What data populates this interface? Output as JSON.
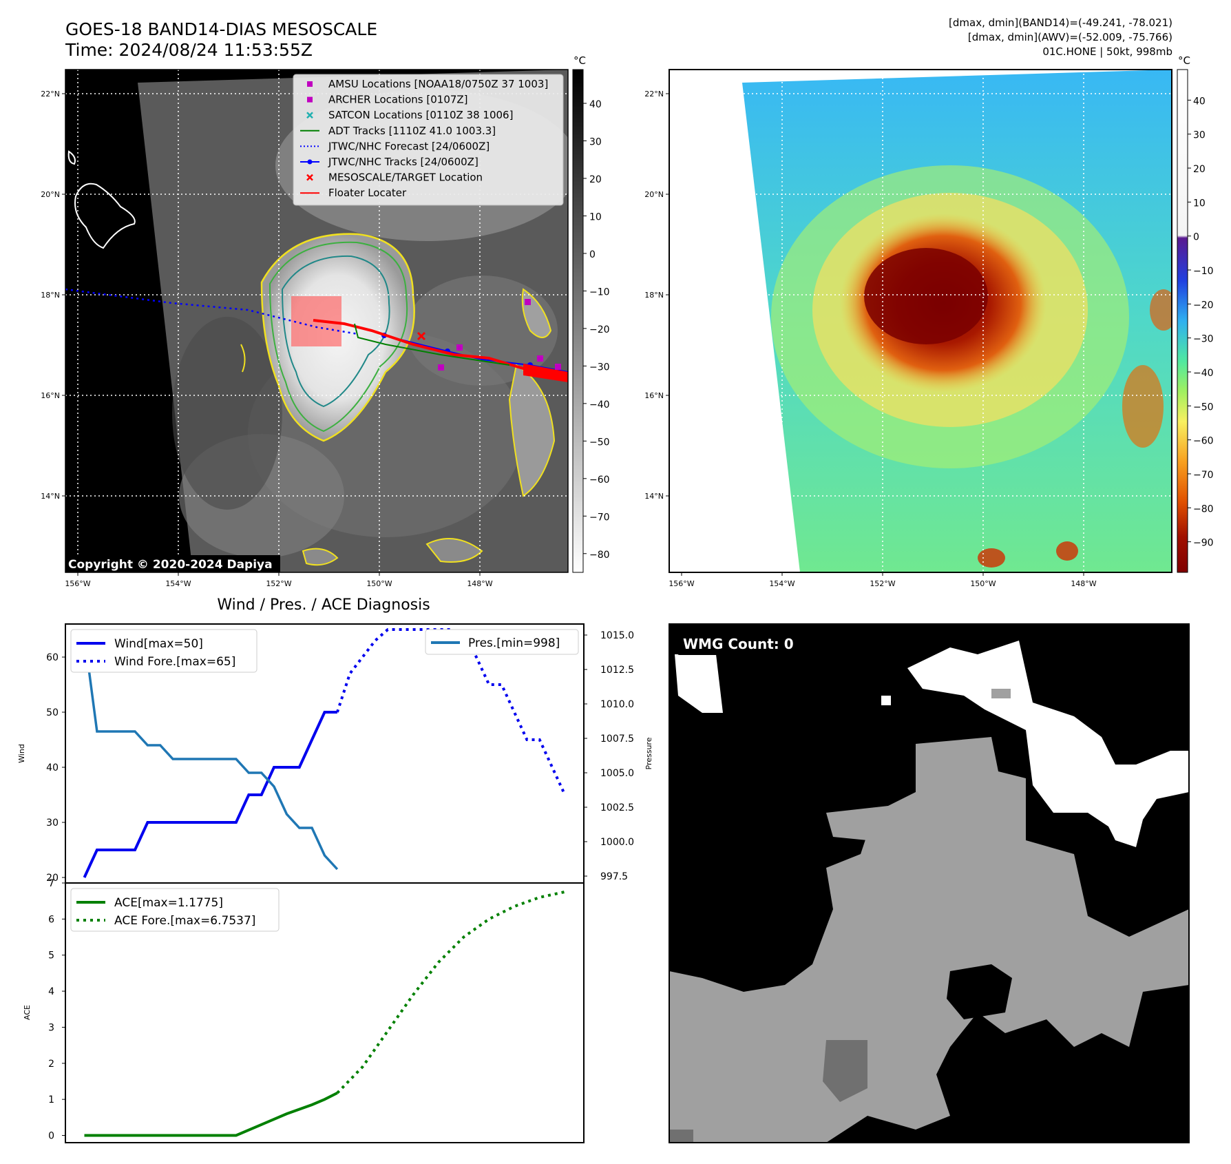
{
  "header": {
    "title": "GOES-18 BAND14-DIAS MESOSCALE",
    "time": "Time: 2024/08/24 11:53:55Z",
    "stats_line1": "[dmax, dmin](BAND14)=(-49.241, -78.021)",
    "stats_line2": "[dmax, dmin](AWV)=(-52.009, -75.766)",
    "stats_line3": "01C.HONE | 50kt, 998mb"
  },
  "map_panel": {
    "copyright": "Copyright © 2020-2024 Dapiya",
    "lat_ticks": [
      "22°N",
      "20°N",
      "18°N",
      "16°N",
      "14°N"
    ],
    "lon_ticks": [
      "156°W",
      "154°W",
      "152°W",
      "150°W",
      "148°W"
    ],
    "colorbar_unit": "°C",
    "colorbar_ticks": [
      "40",
      "30",
      "20",
      "10",
      "0",
      "−10",
      "−20",
      "−30",
      "−40",
      "−50",
      "−60",
      "−70",
      "−80"
    ],
    "legend": [
      {
        "label": "AMSU Locations [NOAA18/0750Z 37 1003]",
        "color": "#c000c0",
        "marker": "square"
      },
      {
        "label": "ARCHER Locations [0107Z]",
        "color": "#c000c0",
        "marker": "square"
      },
      {
        "label": "SATCON Locations [0110Z 38 1006]",
        "color": "#20b0b0",
        "marker": "x"
      },
      {
        "label": "ADT Tracks [1110Z 41.0 1003.3]",
        "color": "#008000",
        "marker": "line"
      },
      {
        "label": "JTWC/NHC Forecast [24/0600Z]",
        "color": "#0000ff",
        "marker": "dotted"
      },
      {
        "label": "JTWC/NHC Tracks [24/0600Z]",
        "color": "#0000ff",
        "marker": "line-dot"
      },
      {
        "label": "MESOSCALE/TARGET Location",
        "color": "#ff0000",
        "marker": "x"
      },
      {
        "label": "Floater Locater",
        "color": "#ff0000",
        "marker": "line"
      }
    ]
  },
  "awv_panel": {
    "colorbar_unit": "°C",
    "colorbar_ticks": [
      "40",
      "30",
      "20",
      "10",
      "0",
      "−10",
      "−20",
      "−30",
      "−40",
      "−50",
      "−60",
      "−70",
      "−80",
      "−90"
    ]
  },
  "wmg_panel": {
    "label": "WMG Count: 0"
  },
  "chart_data": [
    {
      "type": "line",
      "title": "Wind / Pres. / ACE Diagnosis",
      "ylabel": "Wind",
      "y2label": "Pressure",
      "ylim": [
        19,
        66
      ],
      "y2lim": [
        997,
        1015.8
      ],
      "yticks": [
        20,
        30,
        40,
        50,
        60
      ],
      "y2ticks": [
        "997.5",
        "1000.0",
        "1002.5",
        "1005.0",
        "1007.5",
        "1010.0",
        "1012.5",
        "1015.0"
      ],
      "series": [
        {
          "name": "Wind[max=50]",
          "style": "solid",
          "color": "#0000ee",
          "x": [
            0,
            1,
            2,
            3,
            4,
            5,
            6,
            7,
            8,
            9,
            10,
            11,
            12,
            13,
            14,
            15,
            16,
            17,
            18,
            19,
            20
          ],
          "values": [
            20,
            25,
            25,
            25,
            25,
            30,
            30,
            30,
            30,
            30,
            30,
            30,
            30,
            35,
            35,
            40,
            40,
            40,
            45,
            50,
            50
          ]
        },
        {
          "name": "Wind Fore.[max=65]",
          "style": "dotted",
          "color": "#0000ee",
          "x": [
            20,
            21,
            22,
            23,
            24,
            25,
            26,
            27,
            28,
            29,
            30,
            31,
            32,
            33,
            34,
            35,
            36,
            37,
            38
          ],
          "values": [
            50,
            57,
            60,
            63,
            65,
            65,
            65,
            65,
            65,
            65,
            64,
            60,
            55,
            55,
            50,
            45,
            45,
            40,
            35
          ]
        },
        {
          "name": "Pres.[min=998]",
          "style": "solid",
          "color": "#1f77b4",
          "axis": "right",
          "x": [
            0,
            1,
            2,
            3,
            4,
            5,
            6,
            7,
            8,
            9,
            10,
            11,
            12,
            13,
            14,
            15,
            16,
            17,
            18,
            19,
            20
          ],
          "values": [
            1015,
            1008,
            1008,
            1008,
            1008,
            1007,
            1007,
            1006,
            1006,
            1006,
            1006,
            1006,
            1006,
            1005,
            1005,
            1004,
            1002,
            1001,
            1001,
            999,
            998
          ]
        }
      ]
    },
    {
      "type": "line",
      "ylabel": "ACE",
      "ylim": [
        -0.2,
        7
      ],
      "yticks": [
        0,
        1,
        2,
        3,
        4,
        5,
        6,
        7
      ],
      "series": [
        {
          "name": "ACE[max=1.1775]",
          "style": "solid",
          "color": "#008000",
          "x": [
            0,
            2,
            4,
            6,
            8,
            10,
            12,
            14,
            16,
            18,
            19,
            20
          ],
          "values": [
            0,
            0,
            0,
            0,
            0,
            0,
            0,
            0.3,
            0.6,
            0.85,
            1.0,
            1.1775
          ]
        },
        {
          "name": "ACE Fore.[max=6.7537]",
          "style": "dotted",
          "color": "#008000",
          "x": [
            20,
            22,
            24,
            26,
            28,
            30,
            32,
            34,
            36,
            38
          ],
          "values": [
            1.1775,
            1.9,
            2.9,
            3.9,
            4.8,
            5.5,
            6.0,
            6.35,
            6.6,
            6.7537
          ]
        }
      ]
    }
  ]
}
